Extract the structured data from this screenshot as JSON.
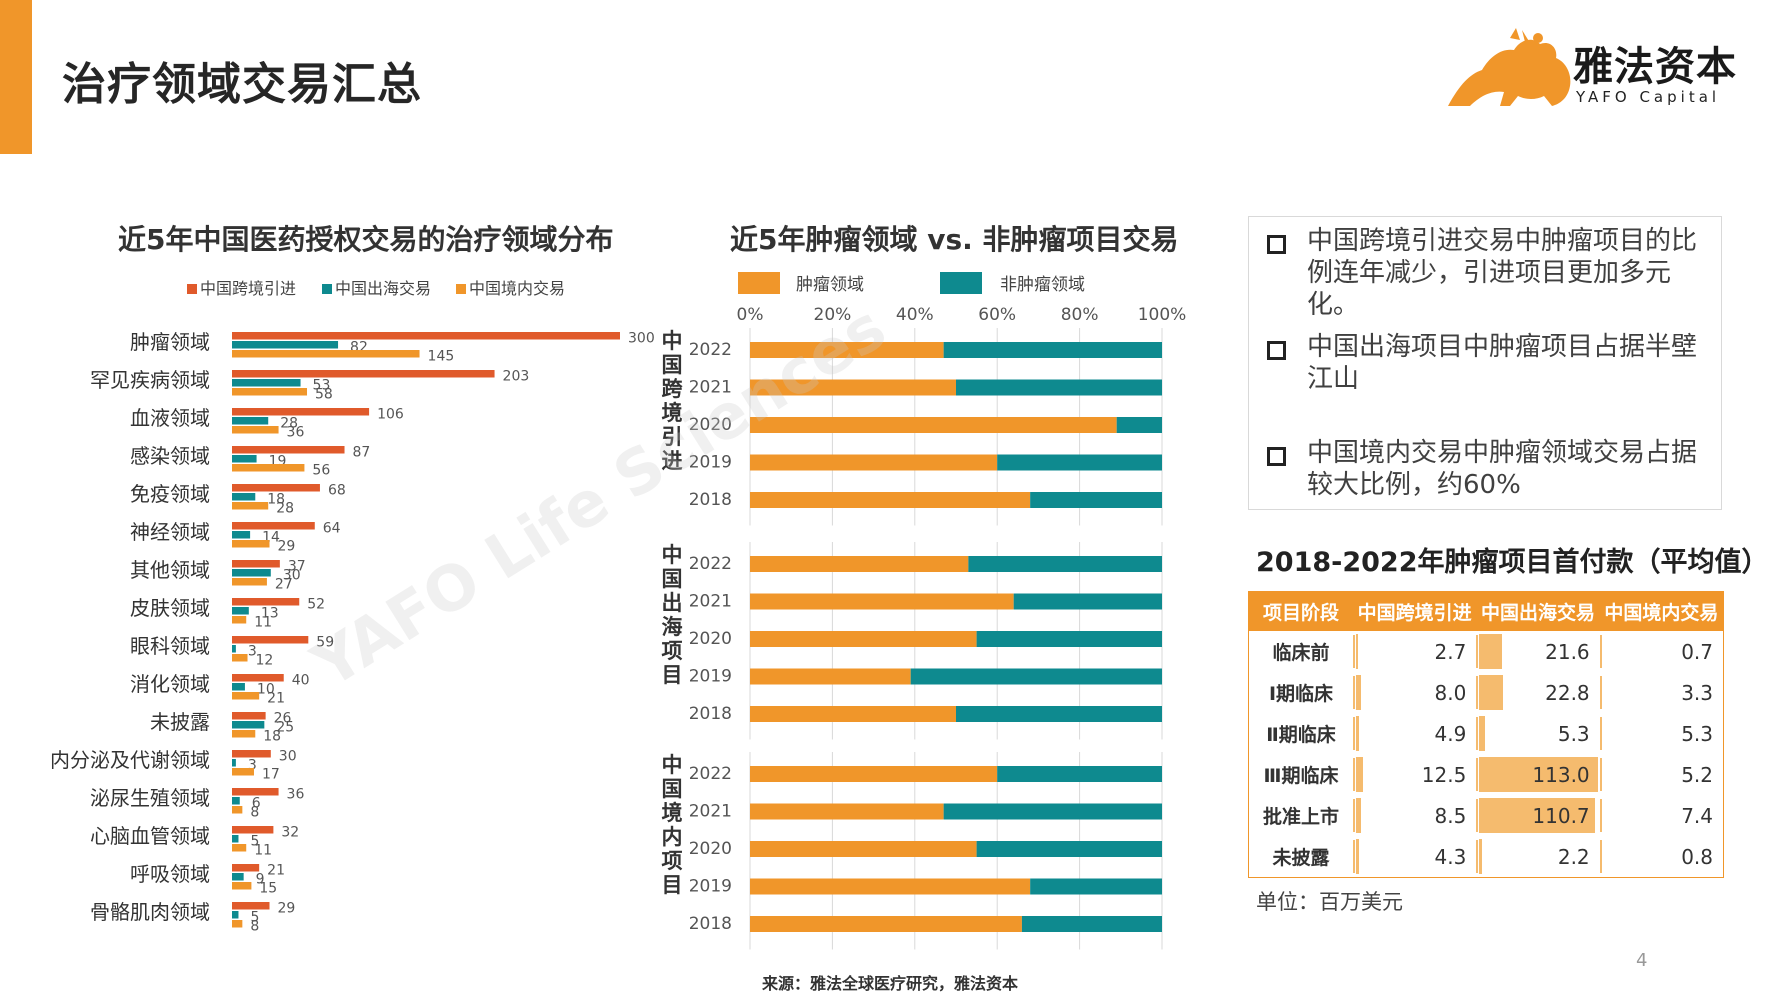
{
  "page": {
    "title": "治疗领域交易汇总",
    "source": "来源：雅法全球医疗研究，雅法资本",
    "page_number": "4",
    "watermark": "YAFO Life Sciences",
    "accent_color": "#F0962A"
  },
  "logo": {
    "name_cn": "雅法资本",
    "name_en": "YAFO Capital",
    "icon": "lion-logo-icon"
  },
  "bullets": [
    "中国跨境引进交易中肿瘤项目的比例连年减少，引进项目更加多元化。",
    "中国出海项目中肿瘤项目占据半壁江山",
    "中国境内交易中肿瘤领域交易占据较大比例，约60%"
  ],
  "table": {
    "title": "2018-2022年肿瘤项目首付款（平均值）",
    "headers": [
      "项目阶段",
      "中国跨境引进",
      "中国出海交易",
      "中国境内交易"
    ],
    "rows": [
      {
        "stage": "临床前",
        "values": [
          "2.7",
          "21.6",
          "0.7"
        ]
      },
      {
        "stage": "Ⅰ期临床",
        "values": [
          "8.0",
          "22.8",
          "3.3"
        ]
      },
      {
        "stage": "Ⅱ期临床",
        "values": [
          "4.9",
          "5.3",
          "5.3"
        ]
      },
      {
        "stage": "Ⅲ期临床",
        "values": [
          "12.5",
          "113.0",
          "5.2"
        ]
      },
      {
        "stage": "批准上市",
        "values": [
          "8.5",
          "110.7",
          "7.4"
        ]
      },
      {
        "stage": "未披露",
        "values": [
          "4.3",
          "2.2",
          "0.8"
        ]
      }
    ],
    "unit": "单位：百万美元",
    "bar_color": "#F5BB6E"
  },
  "chart_data": [
    {
      "type": "bar",
      "orientation": "horizontal",
      "title": "近5年中国医药授权交易的治疗领域分布",
      "legend_position": "top",
      "categories": [
        "肿瘤领域",
        "罕见疾病领域",
        "血液领域",
        "感染领域",
        "免疫领域",
        "神经领域",
        "其他领域",
        "皮肤领域",
        "眼科领域",
        "消化领域",
        "未披露",
        "内分泌及代谢领域",
        "泌尿生殖领域",
        "心脑血管领域",
        "呼吸领域",
        "骨骼肌肉领域"
      ],
      "series": [
        {
          "name": "中国跨境引进",
          "color": "#E05A2B",
          "values": [
            300,
            203,
            106,
            87,
            68,
            64,
            37,
            52,
            59,
            40,
            26,
            30,
            36,
            32,
            21,
            29
          ]
        },
        {
          "name": "中国出海交易",
          "color": "#0E8A8F",
          "values": [
            82,
            53,
            28,
            19,
            18,
            14,
            30,
            13,
            3,
            10,
            25,
            3,
            6,
            5,
            9,
            5
          ]
        },
        {
          "name": "中国境内交易",
          "color": "#F0962A",
          "values": [
            145,
            58,
            36,
            56,
            28,
            29,
            27,
            11,
            12,
            21,
            18,
            17,
            8,
            11,
            15,
            8
          ]
        }
      ],
      "xlim": [
        0,
        300
      ],
      "grid": false
    },
    {
      "type": "bar",
      "stacked": "percent",
      "orientation": "horizontal",
      "title": "近5年肿瘤领域 vs. 非肿瘤项目交易",
      "legend_position": "top",
      "x_ticks": [
        "0%",
        "20%",
        "40%",
        "60%",
        "80%",
        "100%"
      ],
      "xlim": [
        0,
        100
      ],
      "series_names": [
        "肿瘤领域",
        "非肿瘤领域"
      ],
      "series_colors": [
        "#F0962A",
        "#0E8A8F"
      ],
      "groups": [
        {
          "label": "中国跨境引进",
          "years": [
            "2022",
            "2021",
            "2020",
            "2019",
            "2018"
          ],
          "tumor_pct": [
            47,
            50,
            89,
            60,
            68
          ]
        },
        {
          "label": "中国出海项目",
          "years": [
            "2022",
            "2021",
            "2020",
            "2019",
            "2018"
          ],
          "tumor_pct": [
            53,
            64,
            55,
            39,
            50
          ]
        },
        {
          "label": "中国境内项目",
          "years": [
            "2022",
            "2021",
            "2020",
            "2019",
            "2018"
          ],
          "tumor_pct": [
            60,
            47,
            55,
            68,
            66
          ]
        }
      ],
      "grid": true
    }
  ]
}
